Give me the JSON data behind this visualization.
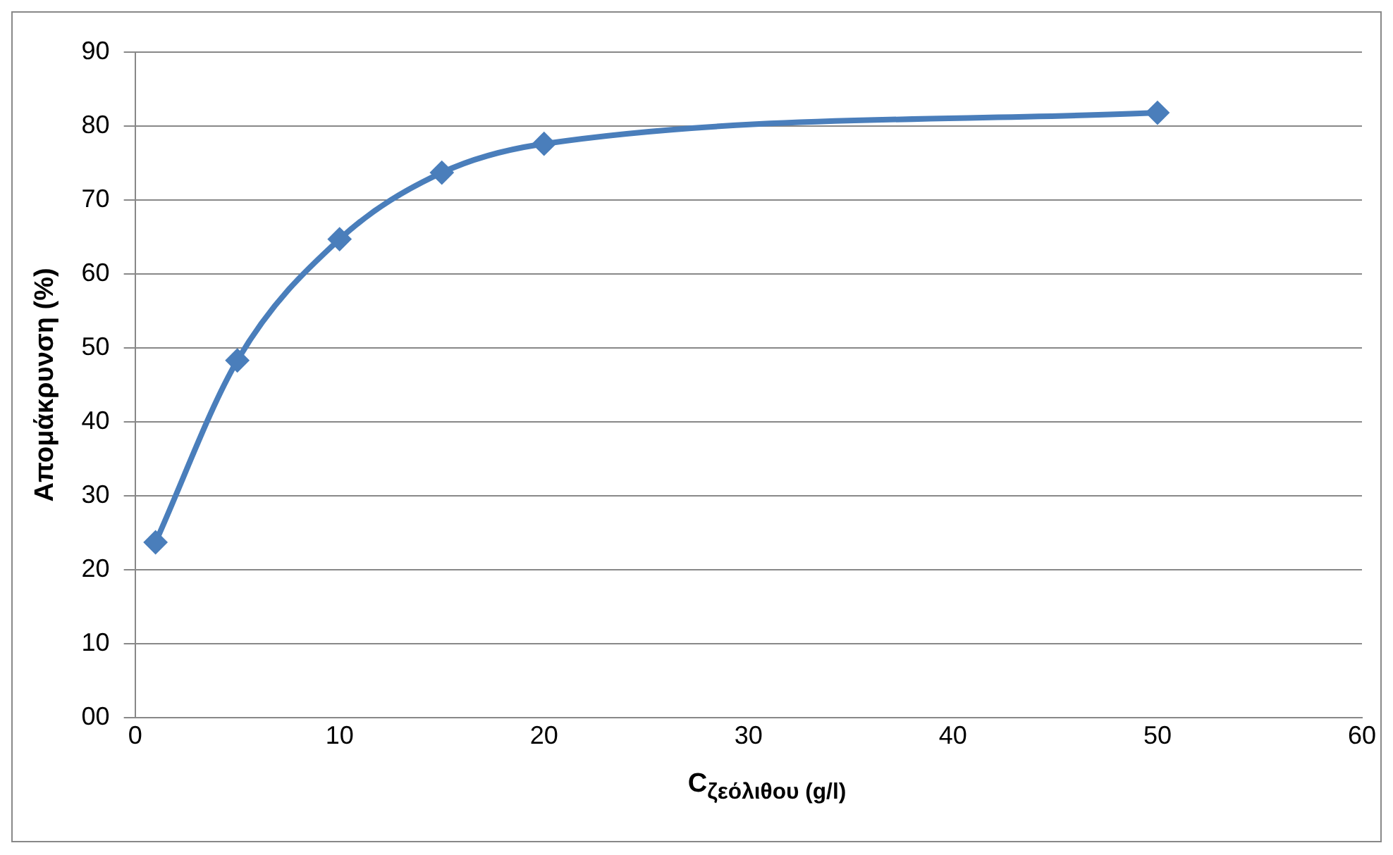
{
  "chart_data": {
    "type": "line",
    "xlabel": "C$_{ζεόλιθου (g/l)}$",
    "ylabel": "Απομάκρυνση (%)",
    "x": [
      1,
      5,
      10,
      15,
      20,
      50
    ],
    "series": [
      {
        "color": "#4a7ebb",
        "values": [
          23.7,
          48.3,
          64.7,
          73.7,
          77.6,
          81.8
        ]
      }
    ],
    "xlim": [
      0,
      60
    ],
    "xticks": [
      0,
      10,
      20,
      30,
      40,
      50,
      60
    ],
    "ylim": [
      0,
      90
    ],
    "yticks": [
      {
        "value": 0,
        "label": "00"
      },
      10,
      20,
      30,
      40,
      50,
      60,
      70,
      80,
      90
    ],
    "grid": "y",
    "legend": false,
    "marker": "diamond",
    "line_style": "solid"
  }
}
